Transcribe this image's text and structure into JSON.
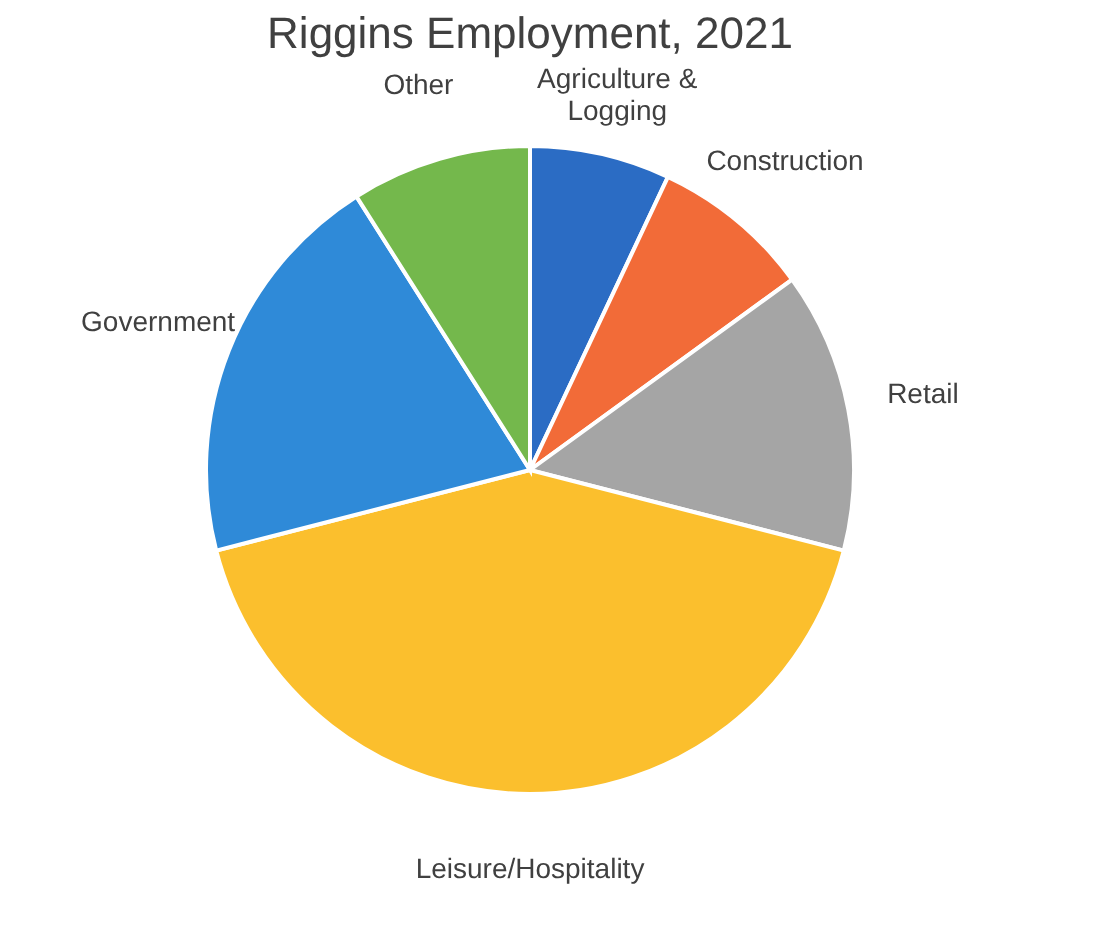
{
  "chart_data": {
    "type": "pie",
    "title": "Riggins Employment, 2021",
    "categories": [
      "Agriculture & Logging",
      "Construction",
      "Retail",
      "Leisure/Hospitality",
      "Government",
      "Other"
    ],
    "values": [
      7,
      8,
      14,
      42,
      20,
      9
    ],
    "colors": [
      "#2b6cc4",
      "#f26b38",
      "#a5a5a5",
      "#fbbf2d",
      "#2f8ad8",
      "#74b84c"
    ],
    "legend": false
  }
}
